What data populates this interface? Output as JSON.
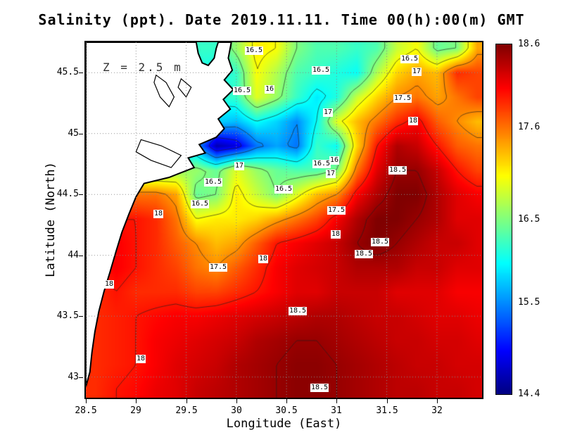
{
  "title": "Salinity (ppt). Date 2019.11.11. Time 00(h):00(m) GMT",
  "annotation": "Z = 2.5 m",
  "axes": {
    "x": {
      "label": "Longitude (East)",
      "range": [
        28.5,
        32.45
      ],
      "ticks": [
        28.5,
        29,
        29.5,
        30,
        30.5,
        31,
        31.5,
        32
      ],
      "tick_labels": [
        "28.5",
        "29",
        "29.5",
        "30",
        "30.5",
        "31",
        "31.5",
        "32"
      ]
    },
    "y": {
      "label": "Latitude (North)",
      "range": [
        42.83,
        45.75
      ],
      "ticks": [
        45.5,
        45,
        44.5,
        44,
        43.5,
        43
      ],
      "tick_labels": [
        "45.5",
        "45",
        "44.5",
        "44",
        "43.5",
        "43"
      ]
    }
  },
  "colorbar": {
    "min": 14.4,
    "max": 18.6,
    "tick_values": [
      18.6,
      17.6,
      16.5,
      15.5,
      14.4
    ],
    "tick_labels": [
      "18.6",
      "17.6",
      "16.5",
      "15.5",
      "14.4"
    ]
  },
  "chart_data": {
    "type": "heatmap",
    "variable": "Salinity (ppt)",
    "depth_annotation": "Z = 2.5 m",
    "colormap": "jet",
    "value_range": [
      14.4,
      18.6
    ],
    "x_lon": [
      28.6,
      28.8,
      29.0,
      29.2,
      29.4,
      29.6,
      29.8,
      30.0,
      30.2,
      30.4,
      30.6,
      30.8,
      31.0,
      31.2,
      31.4,
      31.6,
      31.8,
      32.0,
      32.2,
      32.4
    ],
    "y_lat": [
      45.7,
      45.5,
      45.3,
      45.1,
      44.9,
      44.7,
      44.5,
      44.3,
      44.1,
      43.9,
      43.7,
      43.5,
      43.3,
      43.1,
      42.9
    ],
    "values": [
      [
        16.2,
        16.2,
        16.2,
        16.2,
        16.2,
        16.2,
        16.2,
        16.6,
        17.1,
        17.0,
        16.5,
        16.3,
        16.3,
        16.2,
        16.3,
        16.8,
        17.0,
        16.4,
        16.5,
        17.4
      ],
      [
        16.2,
        16.2,
        16.2,
        16.2,
        16.2,
        16.1,
        16.0,
        16.2,
        17.0,
        16.7,
        16.3,
        16.2,
        16.1,
        16.0,
        16.7,
        17.2,
        17.4,
        17.3,
        17.9,
        17.8
      ],
      [
        16.3,
        16.3,
        16.3,
        16.3,
        16.3,
        16.2,
        16.1,
        16.2,
        16.9,
        16.6,
        16.2,
        15.9,
        16.1,
        16.8,
        17.2,
        17.5,
        17.6,
        17.4,
        17.6,
        17.8
      ],
      [
        16.0,
        16.0,
        16.0,
        16.0,
        16.0,
        16.0,
        15.8,
        15.7,
        16.0,
        15.8,
        15.5,
        16.0,
        16.9,
        17.3,
        17.6,
        17.9,
        18.1,
        17.7,
        17.5,
        17.3
      ],
      [
        15.5,
        15.5,
        15.5,
        15.5,
        15.5,
        15.6,
        14.6,
        14.8,
        15.4,
        15.6,
        15.4,
        16.2,
        16.0,
        17.2,
        18.0,
        18.4,
        18.3,
        18.0,
        17.7,
        17.6
      ],
      [
        16.5,
        16.5,
        16.5,
        16.5,
        16.6,
        16.6,
        16.4,
        16.9,
        16.6,
        16.4,
        16.3,
        16.3,
        16.5,
        17.6,
        18.2,
        18.5,
        18.5,
        18.3,
        18.0,
        17.8
      ],
      [
        17.5,
        17.5,
        17.6,
        17.6,
        17.4,
        16.4,
        16.5,
        17.1,
        16.8,
        16.5,
        16.9,
        17.3,
        17.5,
        18.1,
        18.4,
        18.6,
        18.6,
        18.4,
        18.2,
        18.1
      ],
      [
        18.0,
        18.0,
        18.0,
        17.9,
        17.6,
        17.0,
        17.1,
        17.1,
        17.2,
        17.4,
        17.6,
        17.8,
        18.1,
        18.4,
        18.6,
        18.6,
        18.5,
        18.4,
        18.2,
        18.2
      ],
      [
        18.1,
        18.1,
        18.0,
        17.9,
        17.7,
        17.5,
        17.3,
        17.4,
        17.7,
        18.0,
        18.1,
        18.2,
        18.3,
        18.5,
        18.6,
        18.5,
        18.4,
        18.3,
        18.3,
        18.2
      ],
      [
        17.95,
        18.1,
        18.0,
        17.9,
        17.8,
        17.6,
        17.5,
        17.7,
        17.9,
        18.1,
        18.2,
        18.25,
        18.3,
        18.4,
        18.4,
        18.4,
        18.3,
        18.3,
        18.2,
        18.2
      ],
      [
        17.9,
        18.0,
        17.9,
        17.9,
        17.9,
        17.8,
        17.8,
        17.9,
        18.0,
        18.1,
        18.2,
        18.2,
        18.3,
        18.3,
        18.3,
        18.2,
        18.2,
        18.2,
        18.1,
        18.1
      ],
      [
        17.9,
        17.95,
        18.0,
        18.05,
        18.1,
        18.1,
        18.15,
        18.2,
        18.25,
        18.3,
        18.35,
        18.4,
        18.4,
        18.35,
        18.3,
        18.3,
        18.25,
        18.2,
        18.2,
        18.15
      ],
      [
        17.9,
        17.95,
        18.0,
        18.1,
        18.15,
        18.2,
        18.25,
        18.3,
        18.4,
        18.45,
        18.5,
        18.5,
        18.45,
        18.4,
        18.35,
        18.3,
        18.3,
        18.25,
        18.25,
        18.2
      ],
      [
        17.9,
        17.95,
        18.0,
        18.1,
        18.2,
        18.25,
        18.3,
        18.4,
        18.45,
        18.5,
        18.55,
        18.55,
        18.5,
        18.45,
        18.4,
        18.35,
        18.3,
        18.3,
        18.25,
        18.25
      ],
      [
        17.9,
        18.0,
        18.05,
        18.15,
        18.2,
        18.3,
        18.35,
        18.4,
        18.45,
        18.5,
        18.55,
        18.55,
        18.5,
        18.45,
        18.4,
        18.35,
        18.35,
        18.3,
        18.3,
        18.25
      ]
    ],
    "contour_levels": [
      15,
      15.5,
      16,
      16.5,
      17,
      17.5,
      18,
      18.5
    ],
    "contour_labels": [
      {
        "text": "16.5",
        "lon": 30.18,
        "lat": 45.68
      },
      {
        "text": "16.5",
        "lon": 30.84,
        "lat": 45.52
      },
      {
        "text": "16.5",
        "lon": 31.73,
        "lat": 45.61
      },
      {
        "text": "17",
        "lon": 31.8,
        "lat": 45.51
      },
      {
        "text": "16.5",
        "lon": 30.06,
        "lat": 45.35
      },
      {
        "text": "16",
        "lon": 30.33,
        "lat": 45.36
      },
      {
        "text": "17.5",
        "lon": 31.66,
        "lat": 45.29
      },
      {
        "text": "17",
        "lon": 30.91,
        "lat": 45.17
      },
      {
        "text": "18",
        "lon": 31.76,
        "lat": 45.1
      },
      {
        "text": "17",
        "lon": 30.03,
        "lat": 44.73
      },
      {
        "text": "16",
        "lon": 30.98,
        "lat": 44.78
      },
      {
        "text": "16.5",
        "lon": 30.85,
        "lat": 44.75
      },
      {
        "text": "17",
        "lon": 30.94,
        "lat": 44.67
      },
      {
        "text": "18.5",
        "lon": 31.61,
        "lat": 44.7
      },
      {
        "text": "16.5",
        "lon": 29.77,
        "lat": 44.6
      },
      {
        "text": "16.5",
        "lon": 30.47,
        "lat": 44.54
      },
      {
        "text": "16.5",
        "lon": 29.64,
        "lat": 44.42
      },
      {
        "text": "17.5",
        "lon": 31.0,
        "lat": 44.37
      },
      {
        "text": "18",
        "lon": 29.22,
        "lat": 44.34
      },
      {
        "text": "18",
        "lon": 30.99,
        "lat": 44.17
      },
      {
        "text": "18.5",
        "lon": 31.43,
        "lat": 44.11
      },
      {
        "text": "18.5",
        "lon": 31.27,
        "lat": 44.01
      },
      {
        "text": "18",
        "lon": 30.27,
        "lat": 43.97
      },
      {
        "text": "17.5",
        "lon": 29.82,
        "lat": 43.9
      },
      {
        "text": "18",
        "lon": 28.73,
        "lat": 43.76
      },
      {
        "text": "18.5",
        "lon": 30.61,
        "lat": 43.54
      },
      {
        "text": "18",
        "lon": 29.05,
        "lat": 43.15
      },
      {
        "text": "18.5",
        "lon": 30.83,
        "lat": 42.91
      }
    ],
    "coastline": [
      [
        28.5,
        45.75
      ],
      [
        29.6,
        45.75
      ],
      [
        29.62,
        45.66
      ],
      [
        29.66,
        45.58
      ],
      [
        29.72,
        45.56
      ],
      [
        29.78,
        45.62
      ],
      [
        29.8,
        45.7
      ],
      [
        29.82,
        45.75
      ],
      [
        29.95,
        45.75
      ],
      [
        29.92,
        45.62
      ],
      [
        29.96,
        45.52
      ],
      [
        29.88,
        45.44
      ],
      [
        29.97,
        45.36
      ],
      [
        29.87,
        45.28
      ],
      [
        29.94,
        45.2
      ],
      [
        29.82,
        45.12
      ],
      [
        29.88,
        45.04
      ],
      [
        29.8,
        44.97
      ],
      [
        29.63,
        44.91
      ],
      [
        29.69,
        44.84
      ],
      [
        29.52,
        44.8
      ],
      [
        29.58,
        44.72
      ],
      [
        29.33,
        44.64
      ],
      [
        29.08,
        44.59
      ],
      [
        29.0,
        44.48
      ],
      [
        28.93,
        44.34
      ],
      [
        28.86,
        44.19
      ],
      [
        28.8,
        44.03
      ],
      [
        28.74,
        43.86
      ],
      [
        28.68,
        43.7
      ],
      [
        28.63,
        43.54
      ],
      [
        28.59,
        43.37
      ],
      [
        28.56,
        43.2
      ],
      [
        28.54,
        43.04
      ],
      [
        28.51,
        42.95
      ],
      [
        28.5,
        42.92
      ]
    ],
    "lakes": [
      [
        [
          29.2,
          45.48
        ],
        [
          29.3,
          45.42
        ],
        [
          29.38,
          45.3
        ],
        [
          29.33,
          45.22
        ],
        [
          29.24,
          45.3
        ],
        [
          29.18,
          45.42
        ],
        [
          29.2,
          45.48
        ]
      ],
      [
        [
          29.45,
          45.45
        ],
        [
          29.55,
          45.38
        ],
        [
          29.5,
          45.3
        ],
        [
          29.42,
          45.38
        ],
        [
          29.45,
          45.45
        ]
      ],
      [
        [
          29.05,
          44.95
        ],
        [
          29.25,
          44.9
        ],
        [
          29.45,
          44.82
        ],
        [
          29.35,
          44.72
        ],
        [
          29.15,
          44.78
        ],
        [
          29.0,
          44.85
        ],
        [
          29.05,
          44.95
        ]
      ]
    ]
  }
}
